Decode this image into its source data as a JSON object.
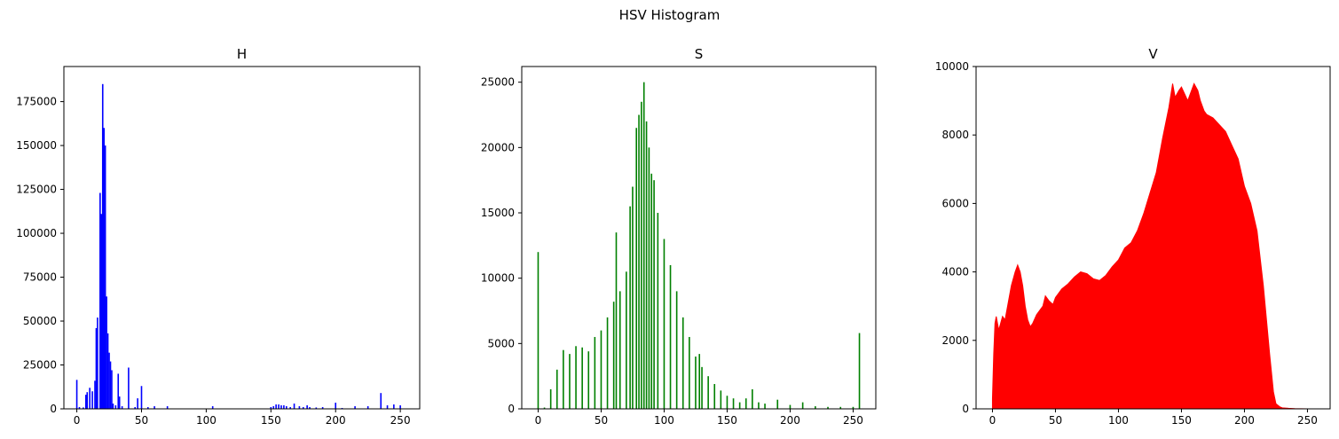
{
  "figure": {
    "title": "HSV Histogram"
  },
  "chart_data": [
    {
      "type": "bar",
      "title": "H",
      "xlabel": "",
      "ylabel": "",
      "xlim": [
        -10,
        265
      ],
      "ylim": [
        0,
        195000
      ],
      "xticks": [
        0,
        50,
        100,
        150,
        200,
        250
      ],
      "yticks": [
        0,
        25000,
        50000,
        75000,
        100000,
        125000,
        150000,
        175000
      ],
      "color": "#0000ff",
      "bins": [
        0,
        2,
        5,
        7,
        8,
        10,
        12,
        14,
        15,
        16,
        18,
        19,
        20,
        21,
        22,
        23,
        24,
        25,
        26,
        27,
        28,
        30,
        32,
        33,
        35,
        40,
        45,
        47,
        50,
        55,
        60,
        70,
        105,
        150,
        152,
        154,
        156,
        158,
        160,
        162,
        165,
        168,
        172,
        175,
        178,
        180,
        185,
        190,
        200,
        205,
        215,
        225,
        235,
        240,
        245,
        250
      ],
      "values": [
        16500,
        1000,
        800,
        8000,
        9500,
        12000,
        10000,
        16000,
        46000,
        52000,
        123000,
        111000,
        185000,
        160000,
        150000,
        64000,
        43000,
        32000,
        27000,
        22000,
        3000,
        2000,
        20000,
        7000,
        1500,
        23500,
        1000,
        6000,
        13000,
        1000,
        1500,
        1500,
        1500,
        1000,
        1500,
        2500,
        2500,
        2000,
        2000,
        1500,
        1000,
        3000,
        1500,
        1000,
        2000,
        1000,
        800,
        1000,
        3500,
        500,
        1500,
        1500,
        9000,
        2000,
        2500,
        2000
      ]
    },
    {
      "type": "bar",
      "title": "S",
      "xlabel": "",
      "ylabel": "",
      "xlim": [
        -13,
        268
      ],
      "ylim": [
        0,
        26200
      ],
      "xticks": [
        0,
        50,
        100,
        150,
        200,
        250
      ],
      "yticks": [
        0,
        5000,
        10000,
        15000,
        20000,
        25000
      ],
      "color": "#008000",
      "bins": [
        0,
        5,
        10,
        15,
        20,
        25,
        30,
        35,
        40,
        45,
        50,
        55,
        60,
        62,
        65,
        70,
        73,
        75,
        78,
        80,
        82,
        84,
        86,
        88,
        90,
        92,
        95,
        100,
        105,
        110,
        115,
        120,
        125,
        128,
        130,
        135,
        140,
        145,
        150,
        155,
        160,
        165,
        170,
        175,
        180,
        190,
        200,
        210,
        220,
        230,
        240,
        250,
        255
      ],
      "values": [
        12000,
        100,
        1500,
        3000,
        4500,
        4200,
        4800,
        4700,
        4400,
        5500,
        6000,
        7000,
        8200,
        13500,
        9000,
        10500,
        15500,
        17000,
        21500,
        22500,
        23500,
        25000,
        22000,
        20000,
        18000,
        17500,
        15000,
        13000,
        11000,
        9000,
        7000,
        5500,
        4000,
        4200,
        3200,
        2500,
        1900,
        1400,
        1000,
        800,
        500,
        800,
        1500,
        500,
        400,
        700,
        300,
        500,
        200,
        150,
        150,
        150,
        5800
      ]
    },
    {
      "type": "area",
      "title": "V",
      "xlabel": "",
      "ylabel": "",
      "xlim": [
        -13,
        268
      ],
      "ylim": [
        0,
        10000
      ],
      "xticks": [
        0,
        50,
        100,
        150,
        200,
        250
      ],
      "yticks": [
        0,
        2000,
        4000,
        6000,
        8000,
        10000
      ],
      "color": "#ff0000",
      "x": [
        0,
        1,
        2,
        3,
        5,
        8,
        10,
        12,
        15,
        18,
        20,
        22,
        24,
        26,
        28,
        30,
        32,
        35,
        38,
        40,
        42,
        45,
        48,
        50,
        55,
        60,
        65,
        70,
        75,
        80,
        85,
        90,
        95,
        100,
        105,
        110,
        115,
        120,
        125,
        130,
        135,
        140,
        143,
        145,
        148,
        150,
        155,
        160,
        163,
        165,
        168,
        170,
        175,
        180,
        185,
        190,
        195,
        200,
        205,
        210,
        215,
        220,
        223,
        225,
        228,
        230,
        235,
        240,
        250
      ],
      "y": [
        300,
        1600,
        2500,
        2700,
        2300,
        2700,
        2600,
        3000,
        3600,
        4000,
        4200,
        4000,
        3600,
        3000,
        2600,
        2400,
        2500,
        2750,
        2900,
        3000,
        3300,
        3150,
        3050,
        3250,
        3500,
        3650,
        3850,
        4000,
        3950,
        3800,
        3750,
        3900,
        4150,
        4350,
        4700,
        4850,
        5200,
        5700,
        6300,
        6900,
        7900,
        8800,
        9500,
        9100,
        9300,
        9400,
        9000,
        9500,
        9300,
        9000,
        8700,
        8600,
        8500,
        8300,
        8100,
        7700,
        7300,
        6500,
        6000,
        5200,
        3600,
        1600,
        500,
        150,
        60,
        30,
        15,
        5,
        0
      ]
    }
  ]
}
